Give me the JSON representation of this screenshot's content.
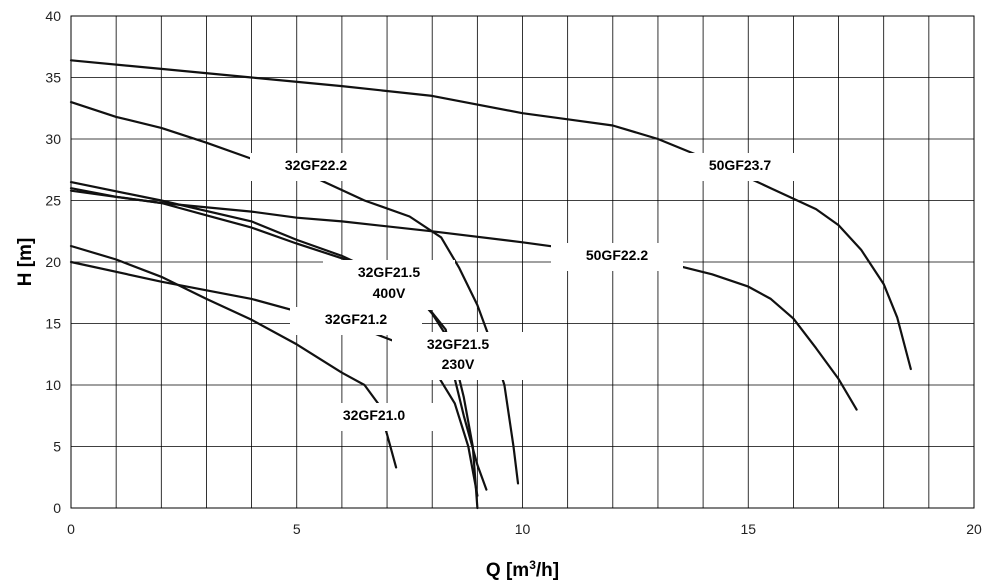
{
  "chart_data": {
    "type": "line",
    "xlabel": "Q [m³/h]",
    "ylabel": "H [m]",
    "xlim": [
      0,
      20
    ],
    "ylim": [
      0,
      40
    ],
    "xticks": [
      0,
      5,
      10,
      15,
      20
    ],
    "yticks": [
      0,
      5,
      10,
      15,
      20,
      25,
      30,
      35,
      40
    ],
    "grid": true,
    "series": [
      {
        "name": "50GF23.7",
        "label_lines": [
          "50GF23.7"
        ],
        "values": [
          [
            0,
            36.4
          ],
          [
            2,
            35.7
          ],
          [
            4,
            35.0
          ],
          [
            6,
            34.3
          ],
          [
            8,
            33.5
          ],
          [
            10,
            32.1
          ],
          [
            11,
            31.6
          ],
          [
            12,
            31.1
          ],
          [
            13,
            30.0
          ],
          [
            14.2,
            28.2
          ],
          [
            15.5,
            26.0
          ],
          [
            16.5,
            24.3
          ],
          [
            17,
            23.0
          ],
          [
            17.5,
            21.0
          ],
          [
            18,
            18.2
          ],
          [
            18.3,
            15.5
          ],
          [
            18.6,
            11.3
          ]
        ]
      },
      {
        "name": "50GF22.2",
        "label_lines": [
          "50GF22.2"
        ],
        "values": [
          [
            0,
            25.8
          ],
          [
            2,
            24.8
          ],
          [
            4,
            24.1
          ],
          [
            5,
            23.6
          ],
          [
            6,
            23.3
          ],
          [
            8,
            22.5
          ],
          [
            10,
            21.6
          ],
          [
            12,
            20.6
          ],
          [
            13,
            20.1
          ],
          [
            14.2,
            19.0
          ],
          [
            15,
            18.0
          ],
          [
            15.5,
            17.0
          ],
          [
            16,
            15.4
          ],
          [
            16.5,
            13.0
          ],
          [
            17,
            10.5
          ],
          [
            17.4,
            8.0
          ]
        ]
      },
      {
        "name": "32GF22.2",
        "label_lines": [
          "32GF22.2"
        ],
        "values": [
          [
            0,
            33.0
          ],
          [
            1,
            31.8
          ],
          [
            2,
            30.9
          ],
          [
            3,
            29.7
          ],
          [
            4.3,
            28.0
          ],
          [
            5.5,
            26.7
          ],
          [
            6.5,
            25.0
          ],
          [
            7.5,
            23.7
          ],
          [
            8.2,
            22.0
          ],
          [
            8.6,
            19.5
          ],
          [
            9.0,
            16.5
          ],
          [
            9.3,
            13.5
          ],
          [
            9.6,
            10.0
          ],
          [
            9.8,
            5.0
          ],
          [
            9.9,
            2.0
          ]
        ]
      },
      {
        "name": "32GF21.5 400V",
        "label_lines": [
          "32GF21.5",
          "400V"
        ],
        "values": [
          [
            0,
            26.0
          ],
          [
            1,
            25.3
          ],
          [
            2,
            24.8
          ],
          [
            3,
            23.8
          ],
          [
            4,
            22.8
          ],
          [
            5,
            21.5
          ],
          [
            6,
            20.3
          ],
          [
            7,
            19.0
          ],
          [
            7.6,
            17.5
          ],
          [
            8.0,
            15.8
          ],
          [
            8.4,
            13.5
          ],
          [
            8.7,
            9.0
          ],
          [
            8.9,
            5.0
          ],
          [
            9.0,
            0.0
          ]
        ]
      },
      {
        "name": "32GF21.5 230V",
        "label_lines": [
          "32GF21.5",
          "230V"
        ],
        "values": [
          [
            0,
            26.5
          ],
          [
            2,
            25.0
          ],
          [
            4,
            23.3
          ],
          [
            5,
            21.8
          ],
          [
            6,
            20.5
          ],
          [
            6.7,
            19.3
          ],
          [
            7.3,
            18.0
          ],
          [
            7.8,
            16.8
          ],
          [
            8.3,
            14.5
          ],
          [
            8.5,
            10.5
          ],
          [
            8.7,
            7.5
          ],
          [
            9.0,
            3.5
          ],
          [
            9.2,
            1.5
          ]
        ]
      },
      {
        "name": "32GF21.2",
        "label_lines": [
          "32GF21.2"
        ],
        "values": [
          [
            0,
            20.0
          ],
          [
            2,
            18.4
          ],
          [
            4,
            17.0
          ],
          [
            5.5,
            15.5
          ],
          [
            6.5,
            14.5
          ],
          [
            7.2,
            13.5
          ],
          [
            7.6,
            12.8
          ],
          [
            8.0,
            11.5
          ],
          [
            8.5,
            8.5
          ],
          [
            8.8,
            5.0
          ],
          [
            9.0,
            1.0
          ]
        ]
      },
      {
        "name": "32GF21.0",
        "label_lines": [
          "32GF21.0"
        ],
        "values": [
          [
            0,
            21.3
          ],
          [
            1,
            20.2
          ],
          [
            2,
            18.8
          ],
          [
            3,
            17.0
          ],
          [
            4,
            15.3
          ],
          [
            5,
            13.3
          ],
          [
            6,
            11.0
          ],
          [
            6.5,
            10.0
          ],
          [
            6.8,
            8.5
          ],
          [
            7.0,
            6.0
          ],
          [
            7.2,
            3.3
          ]
        ]
      }
    ]
  }
}
